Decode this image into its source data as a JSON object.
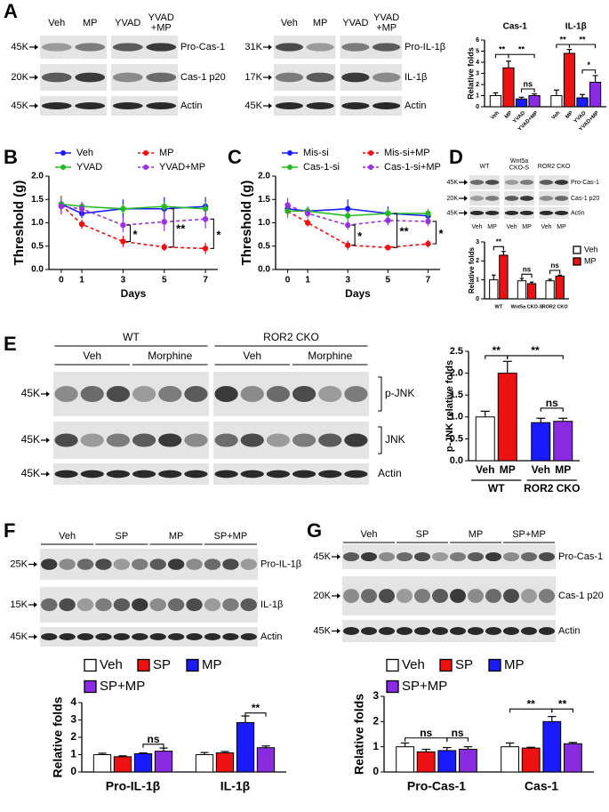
{
  "panel_letters": [
    "A",
    "B",
    "C",
    "D",
    "E",
    "F",
    "G"
  ],
  "blots": [
    {
      "lanes": [
        "Veh",
        "MP",
        "YVAD",
        "YVAD\n+MP"
      ],
      "markers": [
        "45K",
        "20K",
        "45K"
      ],
      "bands": [
        "Pro-Cas-1",
        "Cas-1 p20",
        "Actin"
      ]
    },
    {
      "lanes": [
        "Veh",
        "MP",
        "YVAD",
        "YVAD\n+MP"
      ],
      "markers": [
        "31K",
        "17K",
        "45K"
      ],
      "bands": [
        "Pro-IL-1β",
        "IL-1β",
        "Actin"
      ]
    },
    {
      "groups": [
        "WT",
        "Wnt5a\nCKO-S",
        "ROR2 CKO"
      ],
      "lanes": [
        "Veh",
        "MP",
        "Veh",
        "MP",
        "Veh",
        "MP"
      ],
      "markers": [
        "45K",
        "20K",
        "45K"
      ],
      "bands": [
        "Pro-Cas-1",
        "Cas-1 p20",
        "Actin"
      ]
    },
    {
      "groups": [
        "WT",
        "ROR2 CKO"
      ],
      "subgroups": [
        "Veh",
        "Morphine",
        "Veh",
        "Morphine"
      ],
      "markers": [
        "45K",
        "45K",
        "45K"
      ],
      "bands": [
        "p-JNK",
        "JNK",
        "Actin"
      ]
    },
    {
      "groups": [
        "Veh",
        "SP",
        "MP",
        "SP+MP"
      ],
      "markers": [
        "25K",
        "15K",
        "45K"
      ],
      "bands": [
        "Pro-IL-1β",
        "IL-1β",
        "Actin"
      ]
    },
    {
      "groups": [
        "Veh",
        "SP",
        "MP",
        "SP+MP"
      ],
      "markers": [
        "45K",
        "20K",
        "45K"
      ],
      "bands": [
        "Pro-Cas-1",
        "Cas-1 p20",
        "Actin"
      ]
    }
  ],
  "chart_data": [
    {
      "type": "bar",
      "ylabel": "Relative folds",
      "categories": [
        "Cas-1",
        "IL-1β"
      ],
      "series": [
        {
          "name": "Veh",
          "color": "#ffffff",
          "values": [
            1,
            1
          ],
          "errors": [
            0.25,
            0.5
          ]
        },
        {
          "name": "MP",
          "color": "#ee1111",
          "values": [
            3.5,
            4.8
          ],
          "errors": [
            0.6,
            0.35
          ]
        },
        {
          "name": "YVAD",
          "color": "#1a1aff",
          "values": [
            0.7,
            0.8
          ],
          "errors": [
            0.15,
            0.3
          ]
        },
        {
          "name": "YVAD+MP",
          "color": "#8a2be2",
          "values": [
            1.0,
            2.2
          ],
          "errors": [
            0.15,
            0.6
          ]
        }
      ],
      "ylim": [
        0,
        6
      ],
      "yticks": [
        0,
        1,
        2,
        3,
        4,
        5,
        6
      ],
      "annotations": [
        "**",
        "**",
        "ns",
        "**",
        "**",
        "*"
      ],
      "bar_labels": true
    },
    {
      "type": "line",
      "xlabel": "Days",
      "ylabel": "Threshold (g)",
      "x": [
        0,
        1,
        3,
        5,
        7
      ],
      "xlim": [
        -0.6,
        7.6
      ],
      "xticks": [
        0,
        1,
        3,
        5,
        7
      ],
      "ylim": [
        0,
        2
      ],
      "yticks": [
        {
          "value": 0,
          "label": "0.0"
        },
        0.5,
        {
          "value": 1,
          "label": "1.0"
        },
        1.5,
        {
          "value": 2,
          "label": "2.0"
        }
      ],
      "series": [
        {
          "name": "Veh",
          "color": "#1a1aff",
          "dashed": false,
          "values": [
            1.4,
            1.2,
            1.3,
            1.3,
            1.35
          ],
          "errors": [
            0.15,
            0.1,
            0.2,
            0.25,
            0.2
          ]
        },
        {
          "name": "MP",
          "color": "#ee1111",
          "dashed": true,
          "values": [
            1.38,
            0.97,
            0.6,
            0.48,
            0.45
          ],
          "errors": [
            0.2,
            0.1,
            0.12,
            0.08,
            0.12
          ]
        },
        {
          "name": "YVAD",
          "color": "#22bb22",
          "dashed": false,
          "values": [
            1.4,
            1.35,
            1.3,
            1.35,
            1.3
          ],
          "errors": [
            0.15,
            0.1,
            0.1,
            0.1,
            0.15
          ]
        },
        {
          "name": "YVAD+MP",
          "color": "#9933dd",
          "dashed": true,
          "values": [
            1.35,
            1.3,
            0.95,
            1.02,
            1.08
          ],
          "errors": [
            0.15,
            0.15,
            0.15,
            0.2,
            0.2
          ]
        }
      ],
      "annotations": [
        "*",
        "**",
        "*"
      ],
      "legend": "top"
    },
    {
      "type": "line",
      "xlabel": "Days",
      "ylabel": "Threshold (g)",
      "x": [
        0,
        1,
        3,
        5,
        7
      ],
      "xlim": [
        -0.6,
        7.6
      ],
      "xticks": [
        0,
        1,
        3,
        5,
        7
      ],
      "ylim": [
        0,
        2
      ],
      "yticks": [
        {
          "value": 0,
          "label": "0.0"
        },
        0.5,
        {
          "value": 1,
          "label": "1.0"
        },
        1.5,
        {
          "value": 2,
          "label": "2.0"
        }
      ],
      "series": [
        {
          "name": "Mis-si",
          "color": "#1a1aff",
          "dashed": false,
          "values": [
            1.3,
            1.25,
            1.3,
            1.2,
            1.15
          ],
          "errors": [
            0.1,
            0.1,
            0.2,
            0.15,
            0.1
          ]
        },
        {
          "name": "Mis-si+MP",
          "color": "#ee1111",
          "dashed": true,
          "values": [
            1.25,
            1.0,
            0.52,
            0.47,
            0.55
          ],
          "errors": [
            0.1,
            0.08,
            0.1,
            0.06,
            0.08
          ]
        },
        {
          "name": "Cas-1-si",
          "color": "#22bb22",
          "dashed": false,
          "values": [
            1.25,
            1.25,
            1.15,
            1.2,
            1.2
          ],
          "errors": [
            0.15,
            0.1,
            0.1,
            0.1,
            0.1
          ]
        },
        {
          "name": "Cas-1-si+MP",
          "color": "#9933dd",
          "dashed": true,
          "values": [
            1.38,
            1.2,
            0.95,
            1.05,
            1.03
          ],
          "errors": [
            0.15,
            0.1,
            0.1,
            0.1,
            0.1
          ]
        }
      ],
      "annotations": [
        "*",
        "**",
        "*"
      ],
      "legend": "top"
    },
    {
      "type": "bar",
      "ylabel": "Relative folds",
      "categories": [
        "WT",
        "Wnt5a CKO-S",
        "ROR2 CKO"
      ],
      "series": [
        {
          "name": "Veh",
          "color": "#ffffff",
          "values": [
            1.0,
            0.95,
            0.95
          ],
          "errors": [
            0.25,
            0.12,
            0.08
          ]
        },
        {
          "name": "MP",
          "color": "#ee1111",
          "values": [
            2.3,
            0.8,
            1.2
          ],
          "errors": [
            0.2,
            0.08,
            0.05
          ]
        }
      ],
      "ylim": [
        0,
        3
      ],
      "yticks": [
        0,
        1,
        2,
        3
      ],
      "annotations": [
        "**",
        "ns",
        "ns"
      ],
      "legend": "top-right"
    },
    {
      "type": "bar",
      "ylabel": "p-JNK relative folds",
      "categories": [
        "WT",
        "ROR2 CKO"
      ],
      "series": [
        {
          "name": "Veh",
          "color": [
            "#ffffff",
            "#1a1aff"
          ],
          "values": [
            1.0,
            0.87
          ],
          "errors": [
            0.13,
            0.1
          ]
        },
        {
          "name": "MP",
          "color": [
            "#ee1111",
            "#8a2be2"
          ],
          "values": [
            2.0,
            0.9
          ],
          "errors": [
            0.27,
            0.07
          ]
        }
      ],
      "ylim": [
        0,
        2.5
      ],
      "yticks": [
        {
          "value": 0,
          "label": "0.0"
        },
        0.5,
        {
          "value": 1,
          "label": "1.0"
        },
        1.5,
        {
          "value": 2,
          "label": "2.0"
        },
        2.5
      ],
      "annotations": [
        "**",
        "**",
        "ns"
      ],
      "bar_labels": true
    },
    {
      "type": "bar",
      "ylabel": "Relative folds",
      "categories": [
        "Pro-IL-1β",
        "IL-1β"
      ],
      "series": [
        {
          "name": "Veh",
          "color": "#ffffff",
          "values": [
            1.0,
            1.0
          ],
          "errors": [
            0.08,
            0.12
          ]
        },
        {
          "name": "SP",
          "color": "#ee1111",
          "values": [
            0.88,
            1.1
          ],
          "errors": [
            0.05,
            0.08
          ]
        },
        {
          "name": "MP",
          "color": "#1a1aff",
          "values": [
            1.05,
            2.85
          ],
          "errors": [
            0.05,
            0.38
          ]
        },
        {
          "name": "SP+MP",
          "color": "#8a2be2",
          "values": [
            1.2,
            1.4
          ],
          "errors": [
            0.18,
            0.1
          ]
        }
      ],
      "ylim": [
        0,
        4
      ],
      "yticks": [
        0,
        1,
        2,
        3,
        4
      ],
      "annotations": [
        "ns",
        "**"
      ],
      "legend": "top"
    },
    {
      "type": "bar",
      "ylabel": "Relative folds",
      "categories": [
        "Pro-Cas-1",
        "Cas-1"
      ],
      "series": [
        {
          "name": "Veh",
          "color": "#ffffff",
          "values": [
            1.0,
            1.0
          ],
          "errors": [
            0.15,
            0.15
          ]
        },
        {
          "name": "SP",
          "color": "#ee1111",
          "values": [
            0.8,
            0.95
          ],
          "errors": [
            0.1,
            0.03
          ]
        },
        {
          "name": "MP",
          "color": "#1a1aff",
          "values": [
            0.85,
            2.0
          ],
          "errors": [
            0.12,
            0.2
          ]
        },
        {
          "name": "SP+MP",
          "color": "#8a2be2",
          "values": [
            0.9,
            1.12
          ],
          "errors": [
            0.1,
            0.05
          ]
        }
      ],
      "ylim": [
        0,
        3
      ],
      "yticks": [
        0,
        1,
        2,
        3
      ],
      "annotations": [
        "ns",
        "ns",
        "**",
        "**"
      ],
      "legend": "top"
    }
  ]
}
